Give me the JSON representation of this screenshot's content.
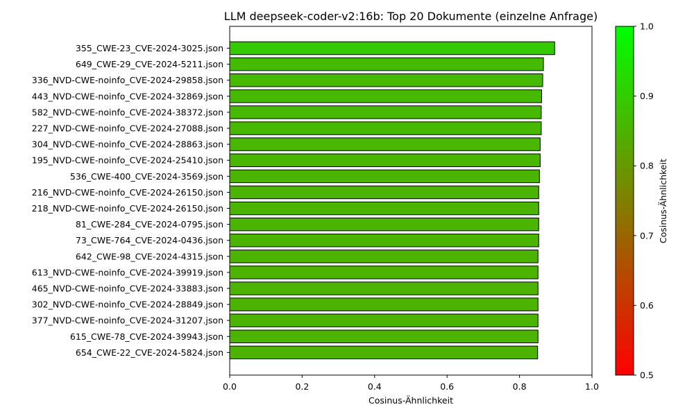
{
  "chart_data": {
    "type": "bar",
    "orientation": "horizontal",
    "title": "LLM deepseek-coder-v2:16b: Top 20 Dokumente (einzelne Anfrage)",
    "xlabel": "Cosinus-Ähnlichkeit",
    "ylabel": "",
    "xlim": [
      0.0,
      1.0
    ],
    "xticks": [
      0.0,
      0.2,
      0.4,
      0.6,
      0.8,
      1.0
    ],
    "xtick_labels": [
      "0.0",
      "0.2",
      "0.4",
      "0.6",
      "0.8",
      "1.0"
    ],
    "grid": false,
    "categories": [
      "355_CWE-23_CVE-2024-3025.json",
      "649_CWE-29_CVE-2024-5211.json",
      "336_NVD-CWE-noinfo_CVE-2024-29858.json",
      "443_NVD-CWE-noinfo_CVE-2024-32869.json",
      "582_NVD-CWE-noinfo_CVE-2024-38372.json",
      "227_NVD-CWE-noinfo_CVE-2024-27088.json",
      "304_NVD-CWE-noinfo_CVE-2024-28863.json",
      "195_NVD-CWE-noinfo_CVE-2024-25410.json",
      "536_CWE-400_CVE-2024-3569.json",
      "216_NVD-CWE-noinfo_CVE-2024-26150.json",
      "218_NVD-CWE-noinfo_CVE-2024-26150.json",
      "81_CWE-284_CVE-2024-0795.json",
      "73_CWE-764_CVE-2024-0436.json",
      "642_CWE-98_CVE-2024-4315.json",
      "613_NVD-CWE-noinfo_CVE-2024-39919.json",
      "465_NVD-CWE-noinfo_CVE-2024-33883.json",
      "302_NVD-CWE-noinfo_CVE-2024-28849.json",
      "377_NVD-CWE-noinfo_CVE-2024-31207.json",
      "615_CWE-78_CVE-2024-39943.json",
      "654_CWE-22_CVE-2024-5824.json"
    ],
    "values": [
      0.897,
      0.866,
      0.864,
      0.861,
      0.86,
      0.86,
      0.857,
      0.857,
      0.855,
      0.853,
      0.853,
      0.853,
      0.853,
      0.851,
      0.851,
      0.851,
      0.851,
      0.851,
      0.851,
      0.85
    ],
    "colorbar": {
      "label": "Cosinus-Ähnlichkeit",
      "range": [
        0.5,
        1.0
      ],
      "ticks": [
        0.5,
        0.6,
        0.7,
        0.8,
        0.9,
        1.0
      ],
      "tick_labels": [
        "0.5",
        "0.6",
        "0.7",
        "0.8",
        "0.9",
        "1.0"
      ],
      "color_low": "#ff0000",
      "color_high": "#00ff00"
    },
    "bar_edge_color": "#000000"
  }
}
